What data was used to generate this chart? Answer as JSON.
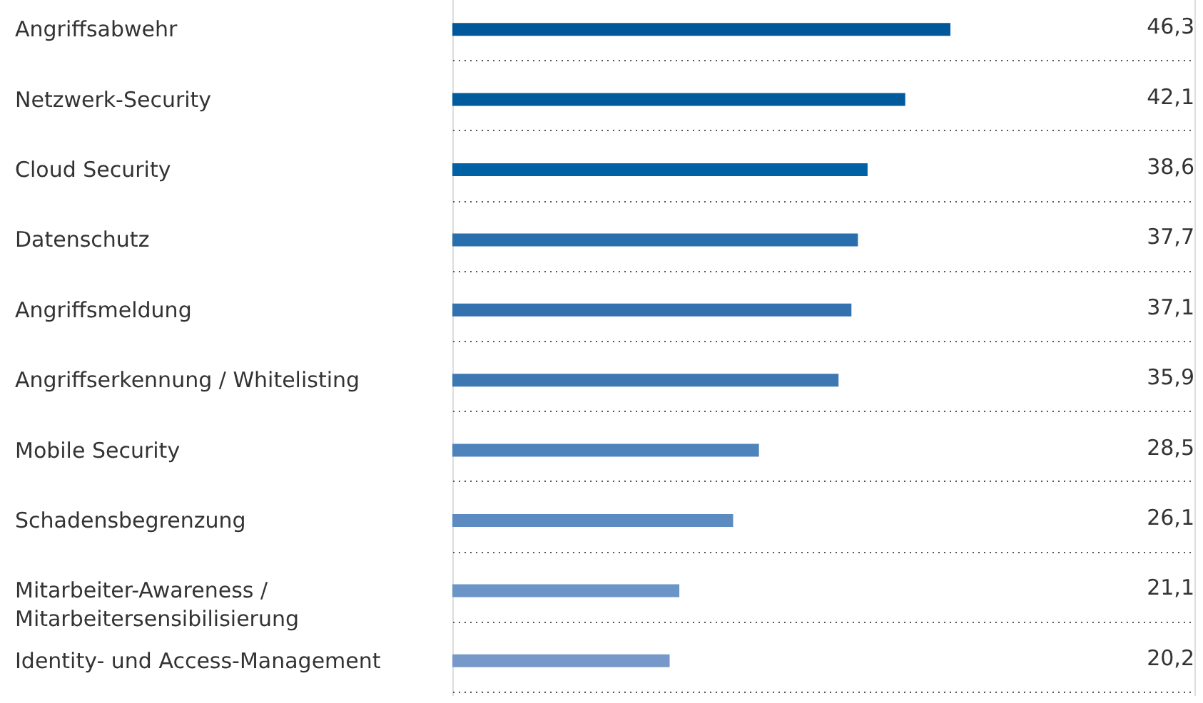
{
  "chart_data": {
    "type": "bar",
    "orientation": "horizontal",
    "grid": "y",
    "value_labels": [
      "46,3",
      "42,1",
      "38,6",
      "37,7",
      "37,1",
      "35,9",
      "28,5",
      "26,1",
      "21,1",
      "20,2"
    ],
    "categories": [
      "Angriffsabwehr",
      "Netzwerk-Security",
      "Cloud Security",
      "Datenschutz",
      "Angriffsmeldung",
      "Angriffserkennung / Whitelisting",
      "Mobile Security",
      "Schadensbegrenzung",
      "Mitarbeiter-Awareness /\nMitarbeitersensibilisierung",
      "Identity- und Access-Management"
    ],
    "values": [
      46.3,
      42.1,
      38.6,
      37.7,
      37.1,
      35.9,
      28.5,
      26.1,
      21.1,
      20.2
    ],
    "colors": [
      "#00589a",
      "#005a9c",
      "#0062a4",
      "#2a6fad",
      "#3372ae",
      "#3e78b2",
      "#4f83bb",
      "#5b8bc0",
      "#6a95c6",
      "#7799c9"
    ]
  }
}
